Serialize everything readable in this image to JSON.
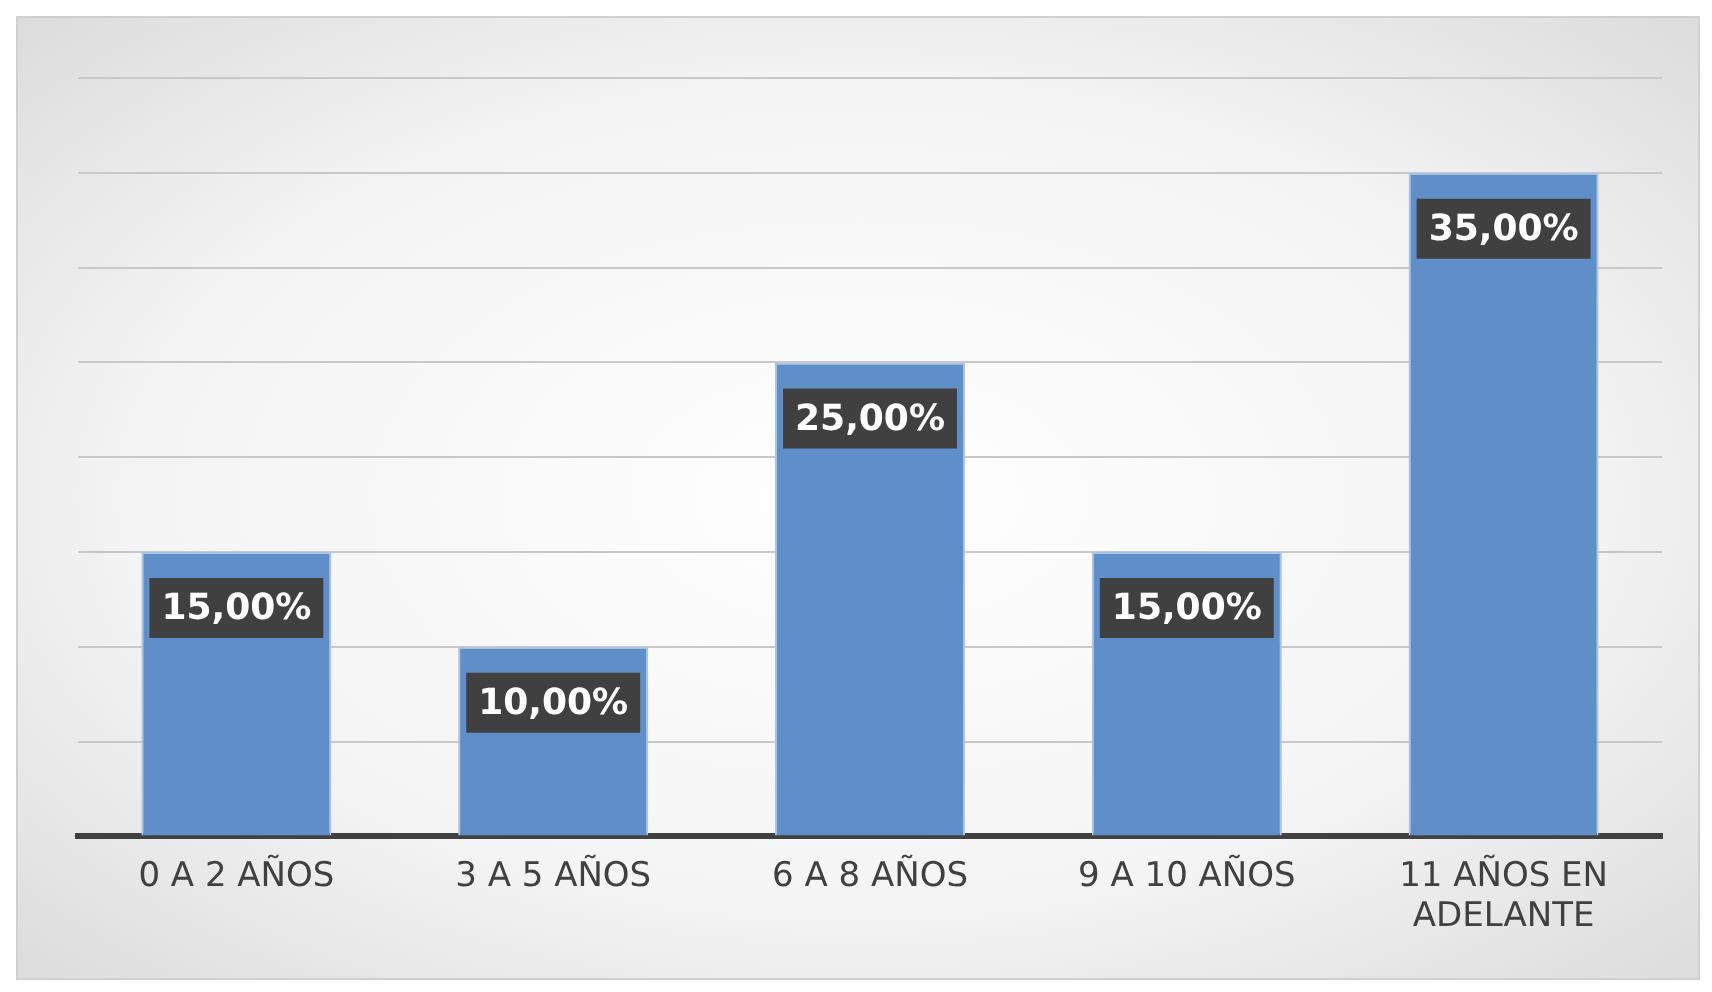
{
  "chart_data": {
    "type": "bar",
    "categories": [
      "0 A 2 AÑOS",
      "3 A 5 AÑOS",
      "6 A 8 AÑOS",
      "9 A 10 AÑOS",
      "11 AÑOS EN ADELANTE"
    ],
    "values": [
      15,
      10,
      25,
      15,
      35
    ],
    "value_labels": [
      "15,00%",
      "10,00%",
      "25,00%",
      "15,00%",
      "35,00%"
    ],
    "color": "#5f8ec8",
    "ylim": [
      0,
      40
    ],
    "yticks": [
      {
        "value": 0,
        "label": null
      },
      {
        "value": 5,
        "label": null
      },
      {
        "value": 10,
        "label": null
      },
      {
        "value": 15,
        "label": null
      },
      {
        "value": 20,
        "label": null
      },
      {
        "value": 25,
        "label": null
      },
      {
        "value": 30,
        "label": null
      },
      {
        "value": 35,
        "label": null
      },
      {
        "value": 40,
        "label": null
      }
    ],
    "grid": "y",
    "tick_labels": "x",
    "legend": false
  }
}
